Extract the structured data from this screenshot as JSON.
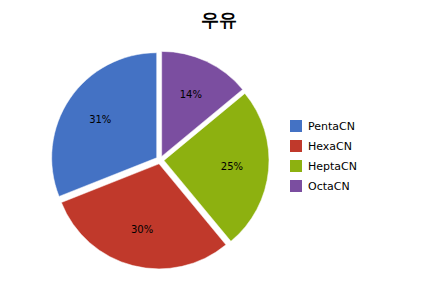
{
  "chart_data": {
    "type": "pie",
    "title": "우유",
    "categories": [
      "PentaCN",
      "HexaCN",
      "HeptaCN",
      "OctaCN"
    ],
    "values": [
      31,
      30,
      25,
      14
    ],
    "value_labels": [
      "31%",
      "30%",
      "25%",
      "14%"
    ],
    "colors": [
      "#4472C4",
      "#C0392B",
      "#8DB110",
      "#7B4EA0"
    ],
    "data_labels": true,
    "legend": "right"
  }
}
